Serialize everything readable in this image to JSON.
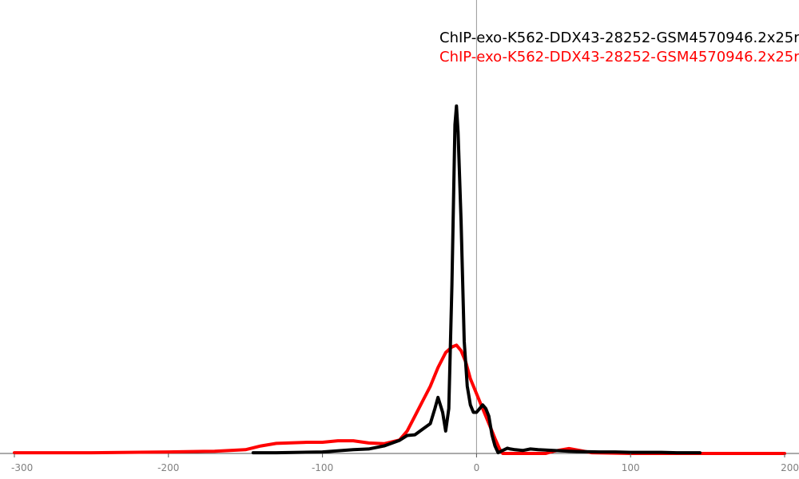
{
  "chart_data": {
    "type": "line",
    "title": "",
    "xlabel": "",
    "ylabel": "",
    "xlim": [
      -300,
      200
    ],
    "ylim": [
      0,
      1
    ],
    "x_ticks": [
      -300,
      -200,
      -100,
      0,
      100,
      200
    ],
    "x_tick_labels": [
      "-300",
      "-200",
      "-100",
      "0",
      "100",
      "200"
    ],
    "grid": false,
    "legend_position": "top-right",
    "series": [
      {
        "name": "ChIP-exo-K562-DDX43-28252-GSM4570946.2x25r",
        "color": "#000000",
        "x": [
          -145,
          -130,
          -100,
          -80,
          -70,
          -60,
          -50,
          -45,
          -40,
          -35,
          -30,
          -27,
          -25,
          -22,
          -20,
          -18,
          -16,
          -14,
          -13,
          -12,
          -10,
          -8,
          -6,
          -4,
          -2,
          0,
          2,
          4,
          6,
          8,
          10,
          12,
          14,
          16,
          18,
          20,
          22,
          25,
          30,
          35,
          40,
          50,
          60,
          70,
          80,
          90,
          100,
          110,
          120,
          130,
          145
        ],
        "y": [
          0.002,
          0.002,
          0.004,
          0.01,
          0.012,
          0.02,
          0.035,
          0.048,
          0.05,
          0.065,
          0.08,
          0.12,
          0.15,
          0.11,
          0.06,
          0.12,
          0.45,
          0.88,
          0.93,
          0.86,
          0.62,
          0.3,
          0.18,
          0.13,
          0.11,
          0.11,
          0.12,
          0.13,
          0.12,
          0.1,
          0.05,
          0.02,
          0.002,
          0.006,
          0.01,
          0.014,
          0.012,
          0.01,
          0.008,
          0.012,
          0.01,
          0.008,
          0.006,
          0.005,
          0.004,
          0.004,
          0.003,
          0.003,
          0.003,
          0.002,
          0.002
        ]
      },
      {
        "name": "ChIP-exo-K562-DDX43-28252-GSM4570946.2x25r",
        "color": "#ff0000",
        "x": [
          -300,
          -250,
          -200,
          -170,
          -150,
          -140,
          -130,
          -110,
          -100,
          -90,
          -80,
          -70,
          -60,
          -50,
          -45,
          -40,
          -35,
          -30,
          -25,
          -20,
          -16,
          -13,
          -10,
          -7,
          -4,
          0,
          3,
          6,
          9,
          12,
          15,
          17,
          20,
          30,
          40,
          45,
          50,
          60,
          75,
          100,
          130,
          160,
          200
        ],
        "y": [
          0.002,
          0.002,
          0.004,
          0.006,
          0.01,
          0.02,
          0.027,
          0.03,
          0.03,
          0.034,
          0.034,
          0.028,
          0.026,
          0.036,
          0.06,
          0.1,
          0.14,
          0.18,
          0.23,
          0.27,
          0.285,
          0.29,
          0.275,
          0.245,
          0.2,
          0.16,
          0.13,
          0.1,
          0.07,
          0.04,
          0.012,
          0.0,
          0.0,
          0.0,
          0.0,
          0.0,
          0.006,
          0.013,
          0.002,
          0.0,
          0.0,
          0.0,
          0.0
        ]
      }
    ]
  }
}
